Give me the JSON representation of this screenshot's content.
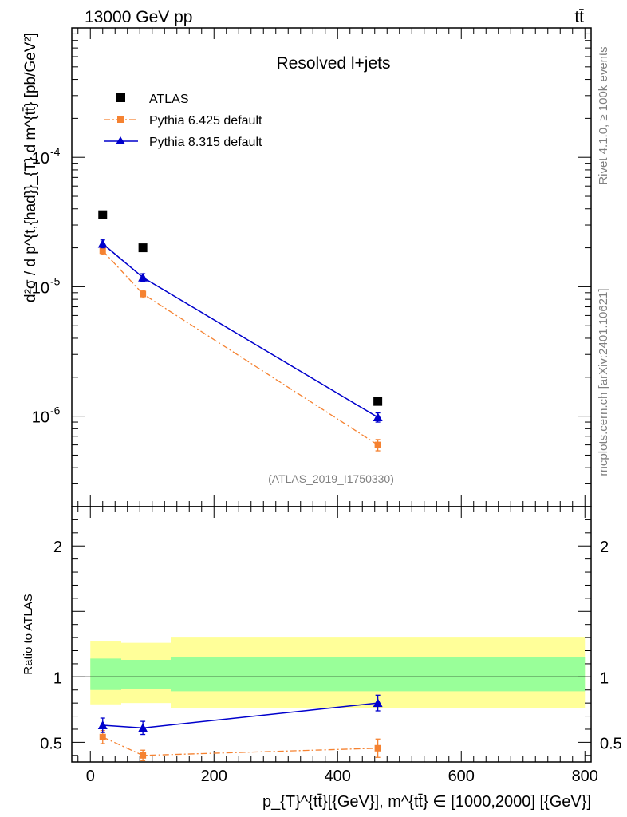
{
  "header": {
    "left": "13000 GeV pp",
    "right": "tt̄"
  },
  "side": {
    "rivet": "Rivet 4.1.0, ≥ 100k events",
    "mcplots": "mcplots.cern.ch [arXiv:2401.10621]"
  },
  "chart_data": {
    "type": "scatter",
    "title": "Resolved l+jets",
    "analysis": "(ATLAS_2019_I1750330)",
    "xlabel": "p_{T}^{tt̄}[{GeV}], m^{tt̄} ∈ [1000,2000] [{GeV}]",
    "ylabel": "d²σ / d p^{t,{had}}_{T} d m^{tt̄} [pb/GeV²]",
    "ratio_ylabel": "Ratio to ATLAS",
    "xlim": [
      -30,
      810
    ],
    "ylim_main": [
      2e-07,
      0.001
    ],
    "ylim_ratio": [
      0.35,
      2.3
    ],
    "x_ticks": [
      "0",
      "200",
      "400",
      "600",
      "800"
    ],
    "y_ticks_main": [
      "10",
      "10",
      "10"
    ],
    "y_ticks_main_exp": [
      "-6",
      "-5",
      "-4"
    ],
    "y_ticks_ratio": [
      "0.5",
      "1",
      "2"
    ],
    "x": [
      20,
      85,
      465
    ],
    "series": [
      {
        "name": "ATLAS",
        "color": "#000000",
        "marker": "square",
        "values": [
          3.6e-05,
          2e-05,
          1.3e-06
        ]
      },
      {
        "name": "Pythia 6.425 default",
        "color": "#f58231",
        "marker": "square",
        "line": "dashdot",
        "values": [
          1.9e-05,
          8.8e-06,
          6e-07
        ],
        "errors": [
          1.2e-06,
          6e-07,
          6e-08
        ]
      },
      {
        "name": "Pythia 8.315 default",
        "color": "#0000cc",
        "marker": "triangle",
        "line": "solid",
        "values": [
          2.15e-05,
          1.18e-05,
          9.8e-07
        ],
        "errors": [
          1.5e-06,
          8e-07,
          8e-08
        ]
      }
    ],
    "ratio_series": [
      {
        "name": "Pythia 6.425 default",
        "color": "#f58231",
        "values": [
          0.54,
          0.4,
          0.455
        ],
        "errors": [
          0.05,
          0.04,
          0.07
        ]
      },
      {
        "name": "Pythia 8.315 default",
        "color": "#0000cc",
        "values": [
          0.63,
          0.61,
          0.8
        ],
        "errors": [
          0.055,
          0.05,
          0.06
        ]
      }
    ],
    "bands": [
      {
        "x": [
          0,
          50
        ],
        "outer": [
          0.79,
          1.27
        ],
        "inner": [
          0.9,
          1.14
        ]
      },
      {
        "x": [
          50,
          130
        ],
        "outer": [
          0.8,
          1.26
        ],
        "inner": [
          0.91,
          1.13
        ]
      },
      {
        "x": [
          130,
          800
        ],
        "outer": [
          0.76,
          1.3
        ],
        "inner": [
          0.89,
          1.15
        ]
      }
    ]
  }
}
